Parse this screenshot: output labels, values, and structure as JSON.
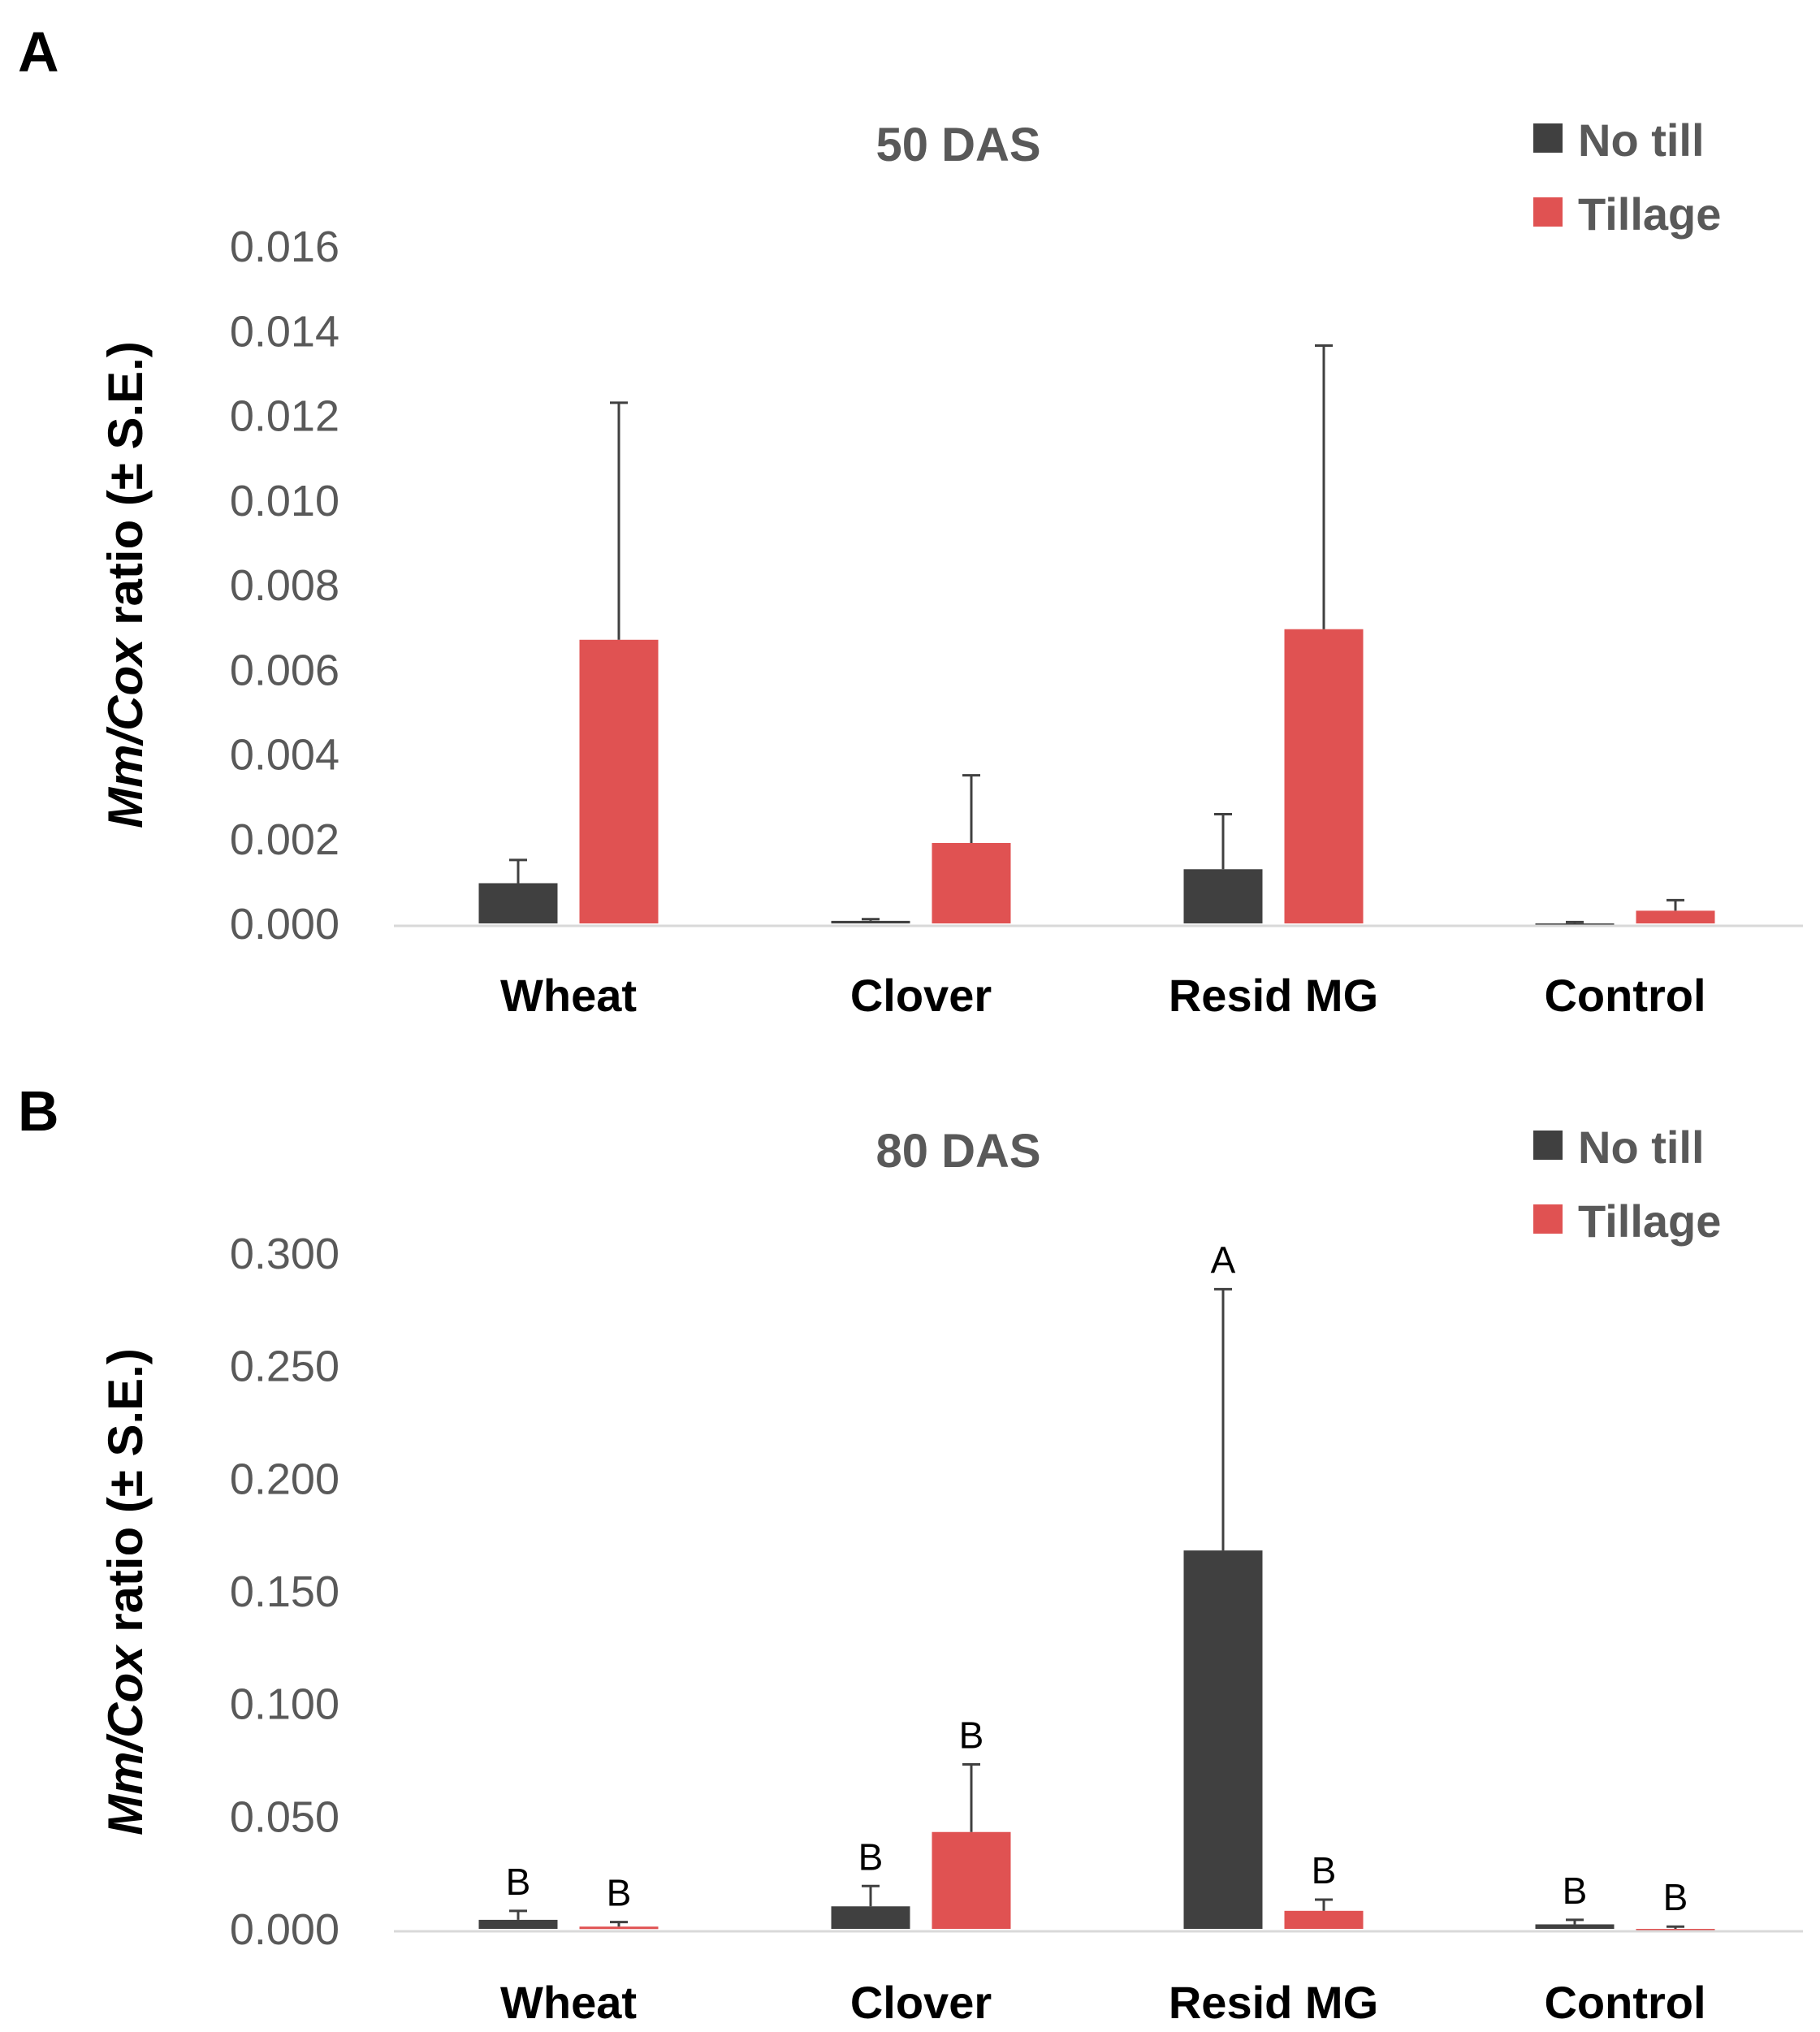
{
  "chart_data": [
    {
      "type": "bar",
      "panel": "A",
      "title": "50 DAS",
      "ylabel": "Mm/Cox ratio (± S.E.)",
      "ylabel_parts": {
        "italic": "Mm/Cox",
        "normal": " ratio (± S.E.)"
      },
      "xlabel": "",
      "ylim": [
        0,
        0.016
      ],
      "yticks": [
        "0.000",
        "0.002",
        "0.004",
        "0.006",
        "0.008",
        "0.010",
        "0.012",
        "0.014",
        "0.016"
      ],
      "categories": [
        "Wheat",
        "Clover",
        "Resid MG",
        "Control"
      ],
      "legend_position": "top-right",
      "series": [
        {
          "name": "No till",
          "color": "#404040",
          "values": [
            0.00095,
            6e-05,
            0.00128,
            0.0
          ],
          "errors": [
            0.00055,
            4e-05,
            0.0013,
            3e-05
          ],
          "labels": [
            "",
            "",
            "",
            ""
          ]
        },
        {
          "name": "Tillage",
          "color": "#e05252",
          "values": [
            0.0067,
            0.0019,
            0.00695,
            0.0003
          ],
          "errors": [
            0.0056,
            0.0016,
            0.0067,
            0.00025
          ],
          "labels": [
            "",
            "",
            "",
            ""
          ]
        }
      ]
    },
    {
      "type": "bar",
      "panel": "B",
      "title": "80 DAS",
      "ylabel": "Mm/Cox ratio (± S.E.)",
      "ylabel_parts": {
        "italic": "Mm/Cox",
        "normal": " ratio (± S.E.)"
      },
      "xlabel": "",
      "ylim": [
        0,
        0.3
      ],
      "yticks": [
        "0.000",
        "0.050",
        "0.100",
        "0.150",
        "0.200",
        "0.250",
        "0.300"
      ],
      "categories": [
        "Wheat",
        "Clover",
        "Resid MG",
        "Control"
      ],
      "legend_position": "top-right",
      "series": [
        {
          "name": "No till",
          "color": "#404040",
          "values": [
            0.004,
            0.01,
            0.168,
            0.002
          ],
          "errors": [
            0.004,
            0.009,
            0.116,
            0.002
          ],
          "labels": [
            "B",
            "B",
            "A",
            "B"
          ]
        },
        {
          "name": "Tillage",
          "color": "#e05252",
          "values": [
            0.001,
            0.043,
            0.008,
            0.0
          ],
          "errors": [
            0.002,
            0.03,
            0.005,
            0.001
          ],
          "labels": [
            "B",
            "B",
            "B",
            "B"
          ]
        }
      ]
    }
  ]
}
